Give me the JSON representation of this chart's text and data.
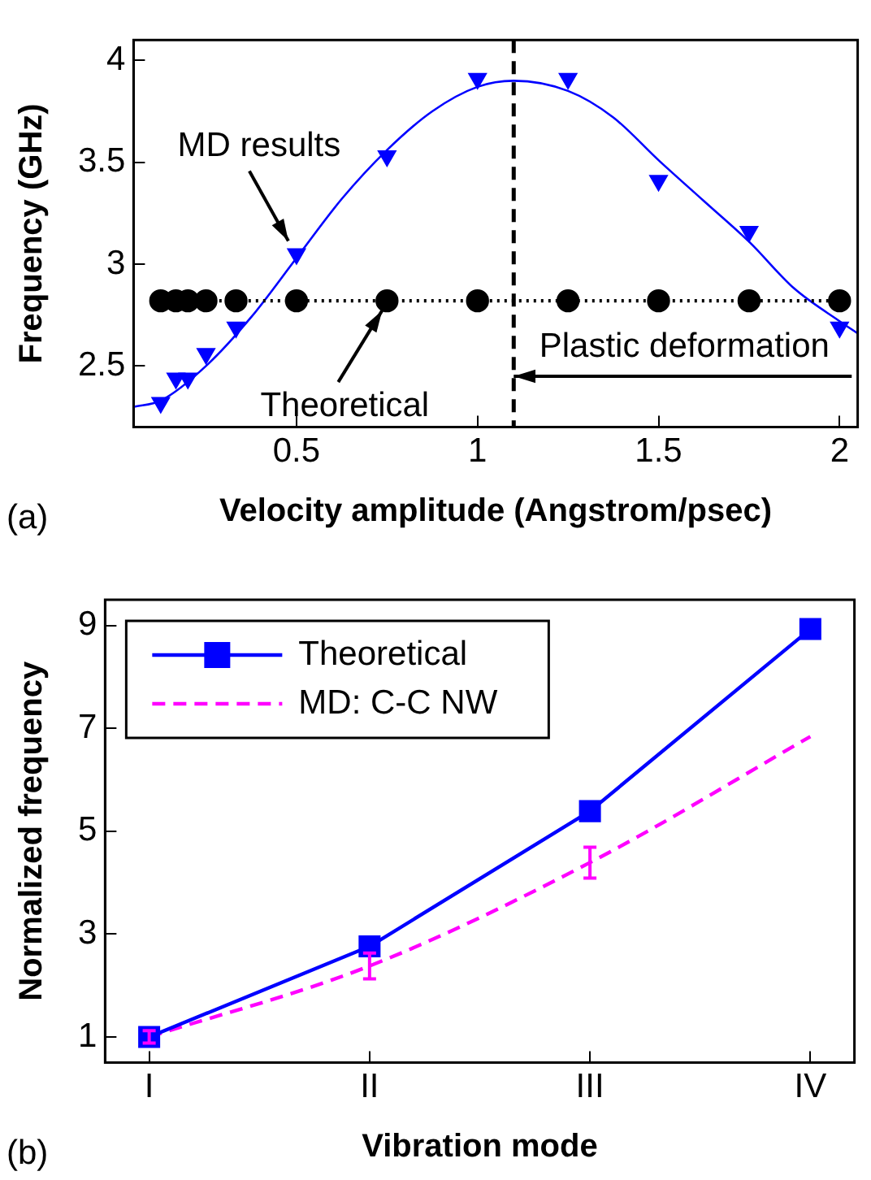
{
  "chart_data": [
    {
      "type": "scatter",
      "xlabel": "Velocity amplitude (Angstrom/psec)",
      "ylabel": "Frequency (GHz)",
      "xlim": [
        0.05,
        2.05
      ],
      "xticks": [
        0.5,
        1,
        1.5,
        2
      ],
      "ylim": [
        2.2,
        4.1
      ],
      "yticks": [
        2.5,
        3,
        3.5,
        4
      ],
      "grid": false,
      "legend": false,
      "x": [
        0.125,
        0.167,
        0.2,
        0.25,
        0.333,
        0.5,
        0.75,
        1,
        1.25,
        1.5,
        1.75,
        2
      ],
      "series": [
        {
          "type": "scatter",
          "color": "#0000ff",
          "marker": "triangle",
          "values": [
            2.32,
            2.44,
            2.44,
            2.56,
            2.69,
            3.05,
            3.53,
            3.91,
            3.91,
            3.41,
            3.16,
            2.69
          ]
        },
        {
          "type": "line",
          "color": "#000000",
          "marker": "circle",
          "line_style": "dotted",
          "values": [
            2.82,
            2.82,
            2.82,
            2.82,
            2.82,
            2.82,
            2.82,
            2.82,
            2.82,
            2.82,
            2.82,
            2.82
          ]
        },
        {
          "type": "line",
          "color": "#0000ff",
          "marker": "none",
          "line_style": "solid",
          "x": [
            0.05,
            0.125,
            0.25,
            0.375,
            0.5,
            0.625,
            0.75,
            0.875,
            1,
            1.1,
            1.25,
            1.375,
            1.5,
            1.625,
            1.75,
            1.875,
            2,
            2.05
          ],
          "values": [
            2.3,
            2.33,
            2.5,
            2.74,
            3.03,
            3.32,
            3.56,
            3.75,
            3.87,
            3.9,
            3.85,
            3.72,
            3.51,
            3.31,
            3.11,
            2.88,
            2.72,
            2.66
          ]
        }
      ],
      "ref_lines": [
        {
          "axis": "x",
          "value": 1.1,
          "color": "#000000",
          "line_style": "dashed"
        }
      ],
      "annotations": [
        {
          "text": "MD results",
          "x": 0.5,
          "y": 3.05
        },
        {
          "text": "Theoretical",
          "x": 0.75,
          "y": 2.82
        },
        {
          "text": "Plastic deformation",
          "x": 1.1,
          "y": 2.45
        },
        "(a)"
      ]
    },
    {
      "type": "line",
      "xlabel": "Vibration mode",
      "ylabel": "Normalized frequency",
      "categories": [
        "I",
        "II",
        "III",
        "IV"
      ],
      "ylim": [
        0.5,
        9.5
      ],
      "yticks": [
        1,
        3,
        5,
        7,
        9
      ],
      "grid": false,
      "legend": "top left",
      "series": [
        {
          "name": "Theoretical",
          "color": "#0000ff",
          "marker": "square",
          "line_style": "solid",
          "values": [
            1,
            2.76,
            5.39,
            8.93
          ]
        },
        {
          "name": "MD: C-C NW",
          "color": "#ff00ff",
          "marker": "none",
          "line_style": "dashed",
          "values": [
            1,
            2.38,
            4.39,
            6.84
          ],
          "errors": [
            0.12,
            0.25,
            0.3,
            null
          ]
        }
      ],
      "annotations": [
        "(b)"
      ]
    }
  ]
}
